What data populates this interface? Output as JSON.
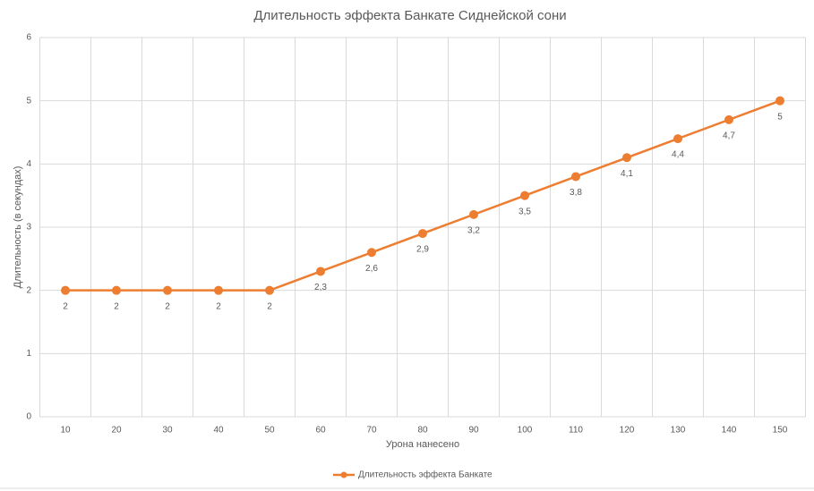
{
  "chart_data": {
    "type": "line",
    "title": "Длительность эффекта Банкате Сиднейской сони",
    "x_label": "Урона нанесено",
    "y_label": "Длительность (в секундах)",
    "categories": [
      "10",
      "20",
      "30",
      "40",
      "50",
      "60",
      "70",
      "80",
      "90",
      "100",
      "110",
      "120",
      "130",
      "140",
      "150"
    ],
    "series": [
      {
        "name": "Длительность эффекта Банкате",
        "color": "#ed7d31",
        "values": [
          2,
          2,
          2,
          2,
          2,
          2.3,
          2.6,
          2.9,
          3.2,
          3.5,
          3.8,
          4.1,
          4.4,
          4.7,
          5
        ],
        "value_labels": [
          "2",
          "2",
          "2",
          "2",
          "2",
          "2,3",
          "2,6",
          "2,9",
          "3,2",
          "3,5",
          "3,8",
          "4,1",
          "4,4",
          "4,7",
          "5"
        ]
      }
    ],
    "ylim": [
      0,
      6
    ],
    "yticks": [
      0,
      1,
      2,
      3,
      4,
      5,
      6
    ],
    "grid": true,
    "legend": "bottom"
  }
}
